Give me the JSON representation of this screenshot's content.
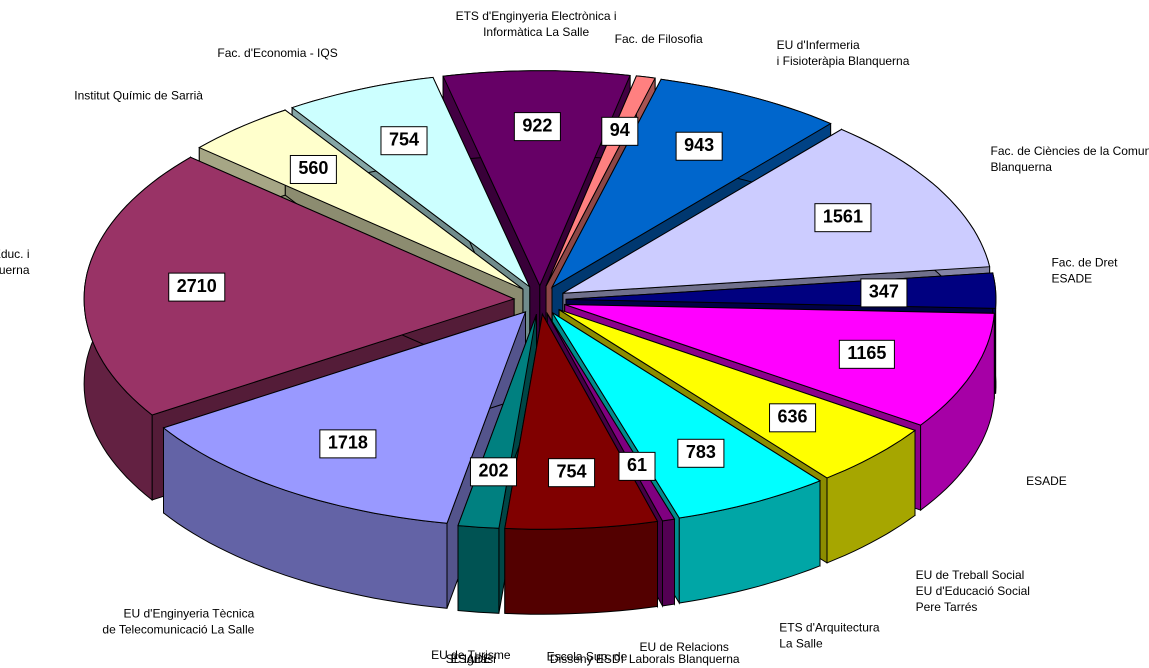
{
  "chart_data": {
    "type": "pie",
    "three_d": true,
    "exploded": true,
    "categories": [
      [
        "ETS d'Enginyeria Electrònica i",
        "Informàtica La Salle"
      ],
      [
        "Fac. de Filosofia"
      ],
      [
        "EU d'Infermeria",
        "i Fisioteràpia Blanquerna"
      ],
      [
        "Fac. de Ciències de la Comun",
        "Blanquerna"
      ],
      [
        "Fac. de Dret",
        "ESADE"
      ],
      [
        "ESADE"
      ],
      [
        "EU de Treball Social",
        "EU d'Educació Social",
        "Pere Tarrés"
      ],
      [
        "ETS d'Arquitectura",
        "La Salle"
      ],
      [
        "EU de Relacions",
        "Laborals Blanquerna"
      ],
      [
        "Escola Sup. de",
        "Disseny ESDI"
      ],
      [
        "EU de Turisme",
        "St. Ignasi",
        "ESADE"
      ],
      [
        "EU d'Enginyeria Tècnica",
        "de Telecomunicació La Salle"
      ],
      [
        "Fac. de Psicologia, C. de l'Educ. i",
        "de l'Esport Blanquerna"
      ],
      [
        "Institut Químic de Sarrià"
      ],
      [
        "Fac. d'Economia - IQS"
      ]
    ],
    "values": [
      922,
      94,
      943,
      1561,
      347,
      1165,
      636,
      783,
      61,
      754,
      202,
      1718,
      2710,
      560,
      754
    ],
    "colors": [
      "#660066",
      "#ff8080",
      "#0066cc",
      "#ccccff",
      "#000080",
      "#ff00ff",
      "#ffff00",
      "#00ffff",
      "#800080",
      "#800000",
      "#008080",
      "#9999ff",
      "#993366",
      "#ffffcc",
      "#ccffff"
    ]
  }
}
